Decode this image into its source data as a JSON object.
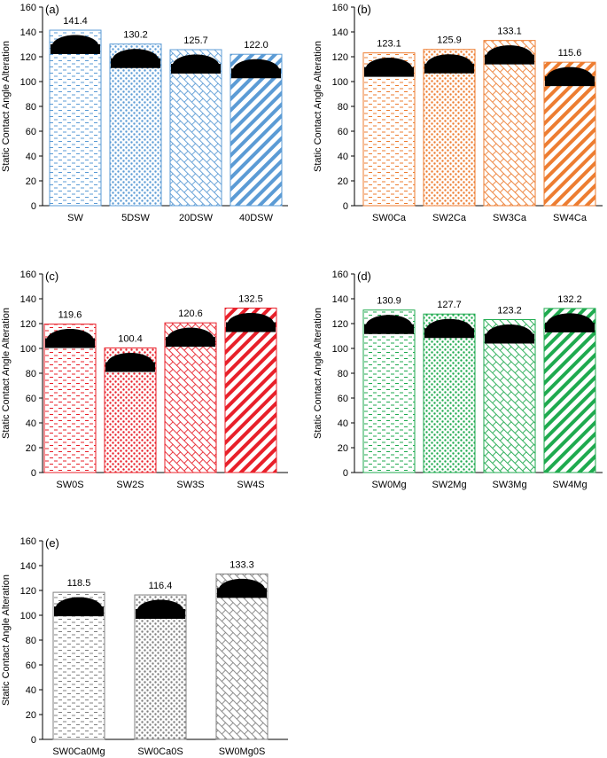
{
  "chart_data": [
    {
      "type": "bar",
      "panel": "(a)",
      "ylabel": "Static Contact Angle Alteration",
      "ylim": [
        0,
        160
      ],
      "yticks": [
        0,
        20,
        40,
        60,
        80,
        100,
        120,
        140,
        160
      ],
      "categories": [
        "SW",
        "5DSW",
        "20DSW",
        "40DSW"
      ],
      "values": [
        141.4,
        130.2,
        125.7,
        122.0
      ],
      "value_labels": [
        "141.4",
        "130.2",
        "125.7",
        "122.0"
      ],
      "color": "#5b9bd5",
      "patterns": [
        "dash",
        "dots",
        "brick",
        "diag"
      ]
    },
    {
      "type": "bar",
      "panel": "(b)",
      "ylabel": "Static Contact Angle Alteration",
      "ylim": [
        0,
        160
      ],
      "yticks": [
        0,
        20,
        40,
        60,
        80,
        100,
        120,
        140,
        160
      ],
      "categories": [
        "SW0Ca",
        "SW2Ca",
        "SW3Ca",
        "SW4Ca"
      ],
      "values": [
        123.1,
        125.9,
        133.1,
        115.6
      ],
      "value_labels": [
        "123.1",
        "125.9",
        "133.1",
        "115.6"
      ],
      "color": "#ed7d31",
      "patterns": [
        "dash",
        "dots",
        "brick",
        "diag"
      ]
    },
    {
      "type": "bar",
      "panel": "(c)",
      "ylabel": "Static Contact Angle Alteration",
      "ylim": [
        0,
        160
      ],
      "yticks": [
        0,
        20,
        40,
        60,
        80,
        100,
        120,
        140,
        160
      ],
      "categories": [
        "SW0S",
        "SW2S",
        "SW3S",
        "SW4S"
      ],
      "values": [
        119.6,
        100.4,
        120.6,
        132.5
      ],
      "value_labels": [
        "119.6",
        "100.4",
        "120.6",
        "132.5"
      ],
      "color": "#e8202a",
      "patterns": [
        "dash",
        "dots",
        "brick",
        "diag"
      ]
    },
    {
      "type": "bar",
      "panel": "(d)",
      "ylabel": "Static Contact Angle Alteration",
      "ylim": [
        0,
        160
      ],
      "yticks": [
        0,
        20,
        40,
        60,
        80,
        100,
        120,
        140,
        160
      ],
      "categories": [
        "SW0Mg",
        "SW2Mg",
        "SW3Mg",
        "SW4Mg"
      ],
      "values": [
        130.9,
        127.7,
        123.2,
        132.2
      ],
      "value_labels": [
        "130.9",
        "127.7",
        "123.2",
        "132.2"
      ],
      "color": "#1faa4f",
      "patterns": [
        "dash",
        "dots",
        "brick",
        "diag"
      ]
    },
    {
      "type": "bar",
      "panel": "(e)",
      "ylabel": "Static Contact Angle Alteration",
      "ylim": [
        0,
        160
      ],
      "yticks": [
        0,
        20,
        40,
        60,
        80,
        100,
        120,
        140,
        160
      ],
      "categories": [
        "SW0Ca0Mg",
        "SW0Ca0S",
        "SW0Mg0S"
      ],
      "values": [
        118.5,
        116.4,
        133.3
      ],
      "value_labels": [
        "118.5",
        "116.4",
        "133.3"
      ],
      "color": "#808080",
      "patterns": [
        "dash",
        "dots",
        "brick"
      ]
    }
  ]
}
